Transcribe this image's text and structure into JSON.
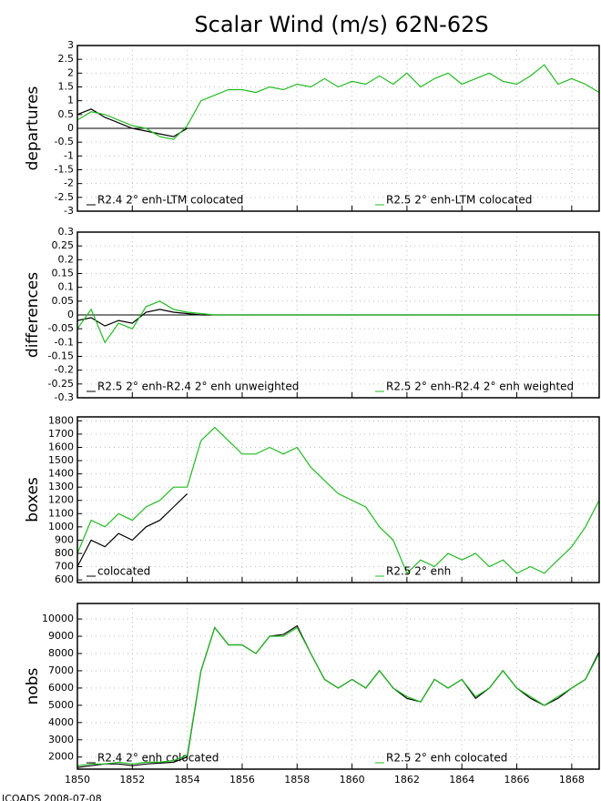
{
  "title": "Scalar Wind (m/s) 62N-62S",
  "footer": "ICOADS 2008-07-08",
  "chart_data": [
    {
      "type": "line",
      "ylabel": "departures",
      "x": [
        1850,
        1850.5,
        1851,
        1851.5,
        1852,
        1852.5,
        1853,
        1853.5,
        1854,
        1854.5,
        1855,
        1855.5,
        1856,
        1856.5,
        1857,
        1857.5,
        1858,
        1858.5,
        1859,
        1859.5,
        1860,
        1860.5,
        1861,
        1861.5,
        1862,
        1862.5,
        1863,
        1863.5,
        1864,
        1864.5,
        1865,
        1865.5,
        1866,
        1866.5,
        1867,
        1867.5,
        1868,
        1868.5,
        1869
      ],
      "series": [
        {
          "name": "R2.4 2° enh-LTM colocated",
          "color": "#000000",
          "values": [
            0.5,
            0.7,
            0.4,
            0.2,
            0.0,
            -0.1,
            -0.2,
            -0.3,
            0.0,
            null,
            null,
            null,
            null,
            null,
            null,
            null,
            null,
            null,
            null,
            null,
            null,
            null,
            null,
            null,
            null,
            null,
            null,
            null,
            null,
            null,
            null,
            null,
            null,
            null,
            null,
            null,
            null,
            null,
            null
          ]
        },
        {
          "name": "R2.5 2° enh-LTM colocated",
          "color": "#22bb22",
          "values": [
            0.3,
            0.6,
            0.5,
            0.3,
            0.1,
            0.0,
            -0.3,
            -0.4,
            0.1,
            1.0,
            1.2,
            1.4,
            1.4,
            1.3,
            1.5,
            1.4,
            1.6,
            1.5,
            1.8,
            1.5,
            1.7,
            1.6,
            1.9,
            1.6,
            2.0,
            1.5,
            1.8,
            2.0,
            1.6,
            1.8,
            2.0,
            1.7,
            1.6,
            1.9,
            2.3,
            1.6,
            1.8,
            1.6,
            1.3
          ]
        }
      ],
      "xlim": [
        1850,
        1869
      ],
      "xticks": [
        1850,
        1852,
        1854,
        1856,
        1858,
        1860,
        1862,
        1864,
        1866,
        1868
      ],
      "ylim": [
        -3,
        3
      ],
      "yticks": [
        -3,
        -2.5,
        -2,
        -1.5,
        -1,
        -0.5,
        0,
        0.5,
        1,
        1.5,
        2,
        2.5,
        3
      ],
      "grid": true,
      "zero_line": true
    },
    {
      "type": "line",
      "ylabel": "differences",
      "x": [
        1850,
        1850.5,
        1851,
        1851.5,
        1852,
        1852.5,
        1853,
        1853.5,
        1854,
        1854.5,
        1855,
        1855.5,
        1856,
        1856.5,
        1857,
        1857.5,
        1858,
        1858.5,
        1859,
        1859.5,
        1860,
        1860.5,
        1861,
        1861.5,
        1862,
        1862.5,
        1863,
        1863.5,
        1864,
        1864.5,
        1865,
        1865.5,
        1866,
        1866.5,
        1867,
        1867.5,
        1868,
        1868.5,
        1869
      ],
      "series": [
        {
          "name": "R2.5 2° enh-R2.4 2° enh unweighted",
          "color": "#000000",
          "values": [
            -0.02,
            -0.01,
            -0.04,
            -0.02,
            -0.03,
            0.01,
            0.02,
            0.01,
            0.005,
            0,
            0,
            0,
            0,
            0,
            0,
            0,
            0,
            0,
            0,
            0,
            0,
            0,
            0,
            0,
            0,
            0,
            0,
            0,
            0,
            0,
            0,
            0,
            0,
            0,
            0,
            0,
            0,
            0,
            0
          ]
        },
        {
          "name": "R2.5 2° enh-R2.4 2° enh weighted",
          "color": "#22bb22",
          "values": [
            -0.05,
            0.02,
            -0.1,
            -0.03,
            -0.05,
            0.03,
            0.05,
            0.02,
            0.01,
            0.005,
            0,
            0,
            0,
            0,
            0,
            0,
            0,
            0,
            0,
            0,
            0,
            0,
            0,
            0,
            0,
            0,
            0,
            0,
            0,
            0,
            0,
            0,
            0,
            0,
            0,
            0,
            0,
            0,
            0
          ]
        }
      ],
      "xlim": [
        1850,
        1869
      ],
      "xticks": [
        1850,
        1852,
        1854,
        1856,
        1858,
        1860,
        1862,
        1864,
        1866,
        1868
      ],
      "ylim": [
        -0.3,
        0.3
      ],
      "yticks": [
        -0.3,
        -0.25,
        -0.2,
        -0.15,
        -0.1,
        -0.05,
        0,
        0.05,
        0.1,
        0.15,
        0.2,
        0.25,
        0.3
      ],
      "grid": true,
      "zero_line": true
    },
    {
      "type": "line",
      "ylabel": "boxes",
      "x": [
        1850,
        1850.5,
        1851,
        1851.5,
        1852,
        1852.5,
        1853,
        1853.5,
        1854,
        1854.5,
        1855,
        1855.5,
        1856,
        1856.5,
        1857,
        1857.5,
        1858,
        1858.5,
        1859,
        1859.5,
        1860,
        1860.5,
        1861,
        1861.5,
        1862,
        1862.5,
        1863,
        1863.5,
        1864,
        1864.5,
        1865,
        1865.5,
        1866,
        1866.5,
        1867,
        1867.5,
        1868,
        1868.5,
        1869
      ],
      "series": [
        {
          "name": "colocated",
          "color": "#000000",
          "values": [
            700,
            900,
            850,
            950,
            900,
            1000,
            1050,
            1150,
            1250,
            null,
            null,
            null,
            null,
            null,
            null,
            null,
            null,
            null,
            null,
            null,
            null,
            null,
            null,
            null,
            null,
            null,
            null,
            null,
            null,
            null,
            null,
            null,
            null,
            null,
            null,
            null,
            null,
            null,
            null
          ]
        },
        {
          "name": "R2.5 2° enh",
          "color": "#22bb22",
          "values": [
            800,
            1050,
            1000,
            1100,
            1050,
            1150,
            1200,
            1300,
            1300,
            1650,
            1750,
            1650,
            1550,
            1550,
            1600,
            1550,
            1600,
            1450,
            1350,
            1250,
            1200,
            1150,
            1000,
            900,
            650,
            750,
            700,
            800,
            750,
            800,
            700,
            750,
            650,
            700,
            650,
            750,
            850,
            1000,
            1200
          ]
        }
      ],
      "xlim": [
        1850,
        1869
      ],
      "xticks": [
        1850,
        1852,
        1854,
        1856,
        1858,
        1860,
        1862,
        1864,
        1866,
        1868
      ],
      "ylim": [
        580,
        1830
      ],
      "yticks": [
        600,
        700,
        800,
        900,
        1000,
        1100,
        1200,
        1300,
        1400,
        1500,
        1600,
        1700,
        1800
      ],
      "grid": true
    },
    {
      "type": "line",
      "ylabel": "nobs",
      "x": [
        1850,
        1850.5,
        1851,
        1851.5,
        1852,
        1852.5,
        1853,
        1853.5,
        1854,
        1854.5,
        1855,
        1855.5,
        1856,
        1856.5,
        1857,
        1857.5,
        1858,
        1858.5,
        1859,
        1859.5,
        1860,
        1860.5,
        1861,
        1861.5,
        1862,
        1862.5,
        1863,
        1863.5,
        1864,
        1864.5,
        1865,
        1865.5,
        1866,
        1866.5,
        1867,
        1867.5,
        1868,
        1868.5,
        1869
      ],
      "series": [
        {
          "name": "R2.4 2° enh colocated",
          "color": "#000000",
          "values": [
            1400,
            1500,
            1600,
            1600,
            1500,
            1600,
            1650,
            1700,
            2000,
            7000,
            9500,
            8500,
            8500,
            8000,
            9000,
            9100,
            9600,
            8000,
            6500,
            6000,
            6500,
            6000,
            7000,
            6000,
            5400,
            5200,
            6500,
            6000,
            6500,
            5400,
            6000,
            7000,
            6000,
            5400,
            5000,
            5400,
            6000,
            6500,
            8100
          ]
        },
        {
          "name": "R2.5 2° enh colocated",
          "color": "#22bb22",
          "values": [
            1500,
            1600,
            1600,
            1700,
            1600,
            1700,
            1700,
            1800,
            2100,
            7000,
            9500,
            8500,
            8500,
            8000,
            9000,
            9000,
            9500,
            8000,
            6500,
            6000,
            6500,
            6000,
            7000,
            6000,
            5500,
            5200,
            6500,
            6000,
            6500,
            5500,
            6000,
            7000,
            6000,
            5500,
            5000,
            5500,
            6000,
            6500,
            8000
          ]
        }
      ],
      "xlim": [
        1850,
        1869
      ],
      "xticks": [
        1850,
        1852,
        1854,
        1856,
        1858,
        1860,
        1862,
        1864,
        1866,
        1868
      ],
      "ylim": [
        1300,
        10900
      ],
      "yticks": [
        2000,
        3000,
        4000,
        5000,
        6000,
        7000,
        8000,
        9000,
        10000
      ],
      "grid": true
    }
  ]
}
